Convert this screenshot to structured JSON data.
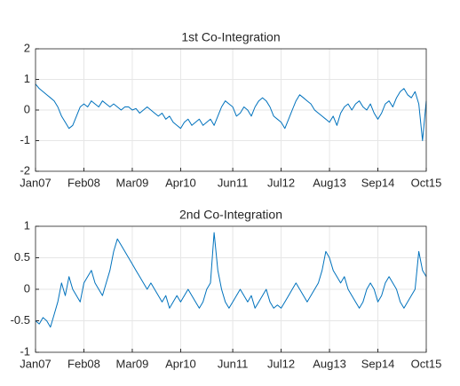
{
  "chart_data": [
    {
      "type": "line",
      "title": "1st Co-Integration",
      "x": [
        "Jan07",
        null,
        null,
        null,
        null,
        null,
        null,
        null,
        null,
        null,
        null,
        null,
        null,
        "Feb08",
        null,
        null,
        null,
        null,
        null,
        null,
        null,
        null,
        null,
        null,
        null,
        null,
        "Mar09",
        null,
        null,
        null,
        null,
        null,
        null,
        null,
        null,
        null,
        null,
        null,
        null,
        "Apr10",
        null,
        null,
        null,
        null,
        null,
        null,
        null,
        null,
        null,
        null,
        null,
        null,
        null,
        "Jun11",
        null,
        null,
        null,
        null,
        null,
        null,
        null,
        null,
        null,
        null,
        null,
        null,
        "Jul12",
        null,
        null,
        null,
        null,
        null,
        null,
        null,
        null,
        null,
        null,
        null,
        null,
        "Aug13",
        null,
        null,
        null,
        null,
        null,
        null,
        null,
        null,
        null,
        null,
        null,
        null,
        "Sep14",
        null,
        null,
        null,
        null,
        null,
        null,
        null,
        null,
        null,
        null,
        null,
        null,
        "Oct15"
      ],
      "series": [
        {
          "color": "#0072bd",
          "values": [
            0.85,
            0.7,
            0.6,
            0.5,
            0.4,
            0.3,
            0.1,
            -0.2,
            -0.4,
            -0.6,
            -0.5,
            -0.2,
            0.1,
            0.2,
            0.1,
            0.3,
            0.2,
            0.1,
            0.3,
            0.2,
            0.1,
            0.2,
            0.1,
            0,
            0.1,
            0.1,
            0,
            0.05,
            -0.1,
            0,
            0.1,
            0,
            -0.1,
            -0.2,
            -0.1,
            -0.3,
            -0.2,
            -0.4,
            -0.5,
            -0.6,
            -0.4,
            -0.3,
            -0.5,
            -0.4,
            -0.3,
            -0.5,
            -0.4,
            -0.3,
            -0.5,
            -0.2,
            0.1,
            0.3,
            0.2,
            0.1,
            -0.2,
            -0.1,
            0.1,
            0,
            -0.2,
            0.1,
            0.3,
            0.4,
            0.3,
            0.1,
            -0.2,
            -0.3,
            -0.4,
            -0.6,
            -0.3,
            0,
            0.3,
            0.5,
            0.4,
            0.3,
            0.2,
            0,
            -0.1,
            -0.2,
            -0.3,
            -0.4,
            -0.2,
            -0.5,
            -0.1,
            0.1,
            0.2,
            0,
            0.2,
            0.3,
            0.1,
            0,
            0.2,
            -0.1,
            -0.3,
            -0.1,
            0.2,
            0.3,
            0.1,
            0.4,
            0.6,
            0.7,
            0.5,
            0.4,
            0.6,
            0.2,
            -1.0,
            0.3
          ]
        }
      ],
      "ylim": [
        -2,
        2
      ],
      "yticks": [
        -2,
        -1,
        0,
        1,
        2
      ],
      "grid": true
    },
    {
      "type": "line",
      "title": "2nd Co-Integration",
      "x": [
        "Jan07",
        null,
        null,
        null,
        null,
        null,
        null,
        null,
        null,
        null,
        null,
        null,
        null,
        "Feb08",
        null,
        null,
        null,
        null,
        null,
        null,
        null,
        null,
        null,
        null,
        null,
        null,
        "Mar09",
        null,
        null,
        null,
        null,
        null,
        null,
        null,
        null,
        null,
        null,
        null,
        null,
        "Apr10",
        null,
        null,
        null,
        null,
        null,
        null,
        null,
        null,
        null,
        null,
        null,
        null,
        null,
        "Jun11",
        null,
        null,
        null,
        null,
        null,
        null,
        null,
        null,
        null,
        null,
        null,
        null,
        "Jul12",
        null,
        null,
        null,
        null,
        null,
        null,
        null,
        null,
        null,
        null,
        null,
        null,
        "Aug13",
        null,
        null,
        null,
        null,
        null,
        null,
        null,
        null,
        null,
        null,
        null,
        null,
        "Sep14",
        null,
        null,
        null,
        null,
        null,
        null,
        null,
        null,
        null,
        null,
        null,
        null,
        "Oct15"
      ],
      "series": [
        {
          "color": "#0072bd",
          "values": [
            -0.5,
            -0.55,
            -0.45,
            -0.5,
            -0.6,
            -0.4,
            -0.2,
            0.1,
            -0.1,
            0.2,
            0.0,
            -0.1,
            -0.2,
            0.1,
            0.2,
            0.3,
            0.1,
            0.0,
            -0.1,
            0.1,
            0.3,
            0.6,
            0.8,
            0.7,
            0.6,
            0.5,
            0.4,
            0.3,
            0.2,
            0.1,
            0.0,
            0.1,
            0.0,
            -0.1,
            -0.2,
            -0.1,
            -0.3,
            -0.2,
            -0.1,
            -0.2,
            -0.1,
            0.0,
            -0.1,
            -0.2,
            -0.3,
            -0.2,
            0.0,
            0.1,
            0.9,
            0.3,
            0.0,
            -0.2,
            -0.3,
            -0.2,
            -0.1,
            0.0,
            -0.1,
            -0.2,
            -0.1,
            -0.3,
            -0.2,
            -0.1,
            0.0,
            -0.2,
            -0.3,
            -0.25,
            -0.3,
            -0.2,
            -0.1,
            0.0,
            0.1,
            0.0,
            -0.1,
            -0.2,
            -0.1,
            0.0,
            0.1,
            0.3,
            0.6,
            0.5,
            0.3,
            0.2,
            0.1,
            0.2,
            0.0,
            -0.1,
            -0.2,
            -0.3,
            -0.2,
            0.0,
            0.1,
            0.0,
            -0.2,
            -0.1,
            0.1,
            0.2,
            0.1,
            0.0,
            -0.2,
            -0.3,
            -0.2,
            -0.1,
            0.0,
            0.6,
            0.3,
            0.2
          ]
        }
      ],
      "ylim": [
        -1,
        1
      ],
      "yticks": [
        -1,
        -0.5,
        0,
        0.5,
        1
      ],
      "grid": true
    }
  ]
}
